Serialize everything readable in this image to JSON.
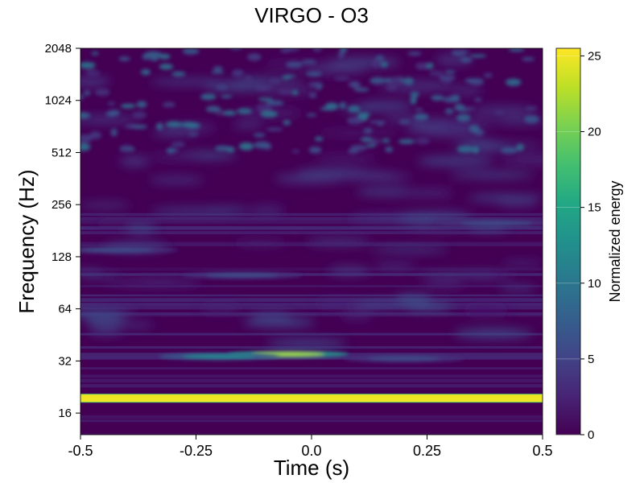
{
  "chart_data": {
    "type": "heatmap",
    "title": "VIRGO - O3",
    "xlabel": "Time (s)",
    "ylabel": "Frequency (Hz)",
    "colorbar_label": "Normalized energy",
    "colormap": "viridis",
    "xlim": [
      -0.5,
      0.5
    ],
    "ylim": [
      12,
      2048
    ],
    "yscale": "log2",
    "clim": [
      0,
      25.5
    ],
    "x_ticks": [
      -0.5,
      -0.25,
      0.0,
      0.25,
      0.5
    ],
    "x_tick_labels": [
      "-0.5",
      "-0.25",
      "0.0",
      "0.25",
      "0.5"
    ],
    "y_ticks": [
      16,
      32,
      64,
      128,
      256,
      512,
      1024,
      2048
    ],
    "y_tick_labels": [
      "16",
      "32",
      "64",
      "128",
      "256",
      "512",
      "1024",
      "2048"
    ],
    "colorbar_ticks": [
      0,
      5,
      10,
      15,
      20,
      25
    ],
    "colorbar_tick_labels": [
      "0",
      "5",
      "10",
      "15",
      "20",
      "25"
    ],
    "features": [
      {
        "kind": "horizontal-line",
        "frequency": 19.5,
        "t_start": -0.5,
        "t_end": 0.5,
        "energy": 25
      },
      {
        "kind": "blob",
        "time": -0.05,
        "frequency": 35,
        "energy": 22
      },
      {
        "kind": "blob",
        "time": -0.2,
        "frequency": 34,
        "energy": 12
      },
      {
        "kind": "blob",
        "time": 0.2,
        "frequency": 33,
        "energy": 6
      },
      {
        "kind": "blob",
        "time": -0.42,
        "frequency": 140,
        "energy": 6
      },
      {
        "kind": "blob",
        "time": -0.15,
        "frequency": 100,
        "energy": 6
      },
      {
        "kind": "blob",
        "time": 0.4,
        "frequency": 200,
        "energy": 6
      }
    ]
  }
}
